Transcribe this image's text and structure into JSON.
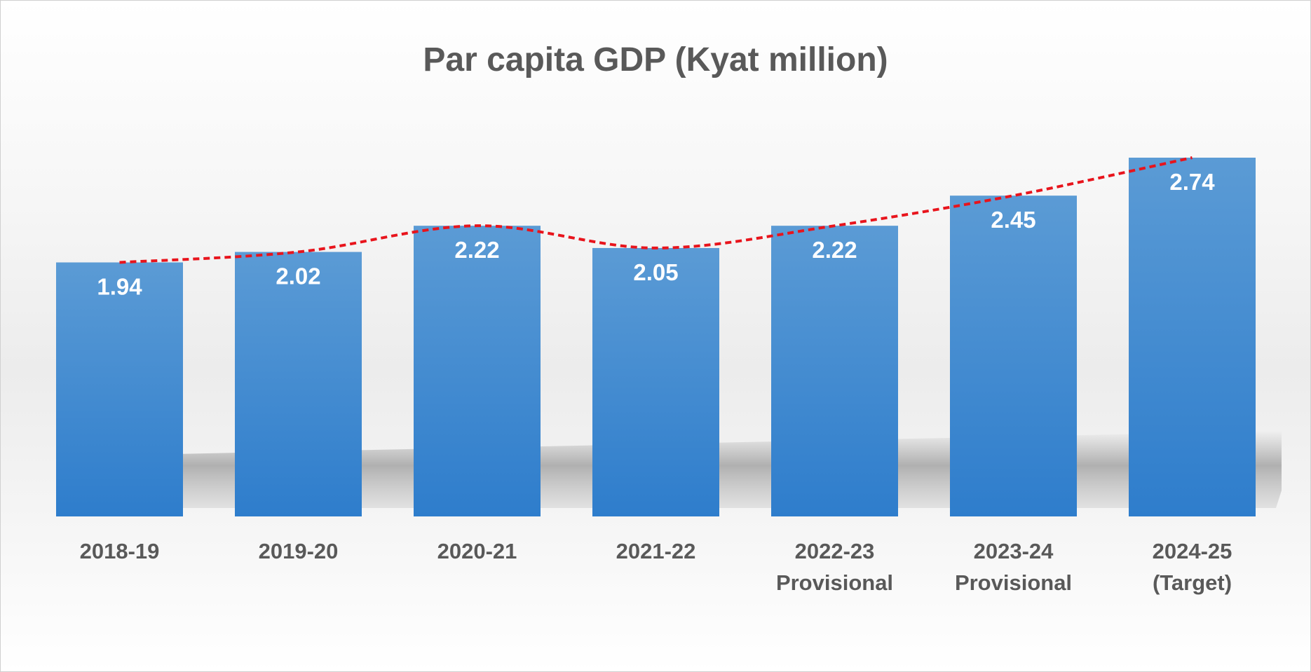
{
  "chart_data": {
    "type": "bar",
    "title": "Par capita GDP (Kyat million)",
    "categories": [
      [
        "2018-19"
      ],
      [
        "2019-20"
      ],
      [
        "2020-21"
      ],
      [
        "2021-22"
      ],
      [
        "2022-23",
        "Provisional"
      ],
      [
        "2023-24",
        "Provisional"
      ],
      [
        "2024-25",
        "(Target)"
      ]
    ],
    "values": [
      1.94,
      2.02,
      2.22,
      2.05,
      2.22,
      2.45,
      2.74
    ],
    "value_labels": [
      "1.94",
      "2.02",
      "2.22",
      "2.05",
      "2.22",
      "2.45",
      "2.74"
    ],
    "ylim": [
      0,
      2.74
    ],
    "grid": false,
    "legend": "none",
    "colors": {
      "bar_top": "#5b9bd5",
      "bar_bottom": "#2e7dcc",
      "trendline": "#e8141c",
      "title": "#595959",
      "axis_text": "#595959",
      "value_text": "#ffffff"
    },
    "trendline": {
      "style": "dashed",
      "smooth": true
    }
  }
}
